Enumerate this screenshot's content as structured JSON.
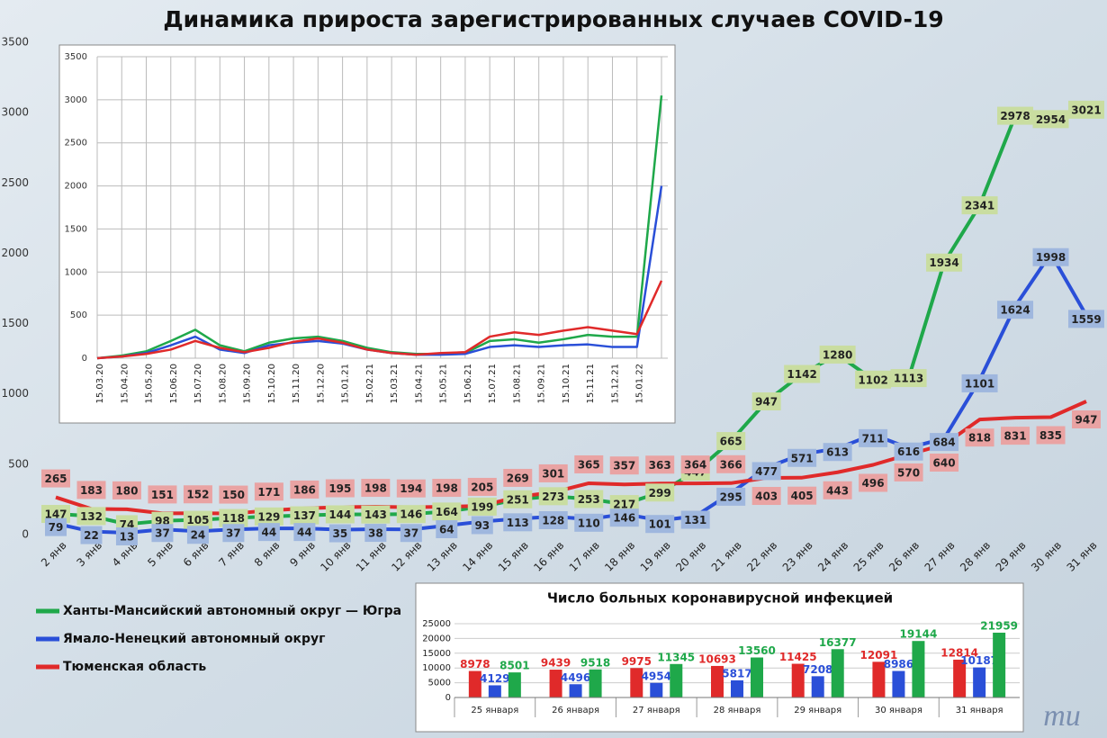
{
  "chart_data": [
    {
      "type": "line",
      "title": "Динамика прироста зарегистрированных случаев COVID-19",
      "categories": [
        "2 янв",
        "3 янв",
        "4 янв",
        "5 янв",
        "6 янв",
        "7 янв",
        "8 янв",
        "9 янв",
        "10 янв",
        "11 янв",
        "12 янв",
        "13 янв",
        "14 янв",
        "15 янв",
        "16 янв",
        "17 янв",
        "18 янв",
        "19 янв",
        "20 янв",
        "21 янв",
        "22 янв",
        "23 янв",
        "24 янв",
        "25 янв",
        "26 янв",
        "27 янв",
        "28 янв",
        "29 янв",
        "30 янв",
        "31 янв"
      ],
      "series": [
        {
          "name": "Ханты-Мансийский автономный округ — Югра",
          "color": "#1fa84a",
          "values": [
            147,
            132,
            74,
            98,
            105,
            118,
            129,
            137,
            144,
            143,
            146,
            164,
            199,
            251,
            273,
            253,
            217,
            299,
            447,
            665,
            947,
            1142,
            1280,
            1102,
            1113,
            1934,
            2341,
            2978,
            2954,
            3021
          ]
        },
        {
          "name": "Ямало-Ненецкий автономный округ",
          "color": "#2a4fd8",
          "values": [
            79,
            22,
            13,
            37,
            24,
            37,
            44,
            44,
            35,
            38,
            37,
            64,
            93,
            113,
            128,
            110,
            146,
            101,
            131,
            295,
            477,
            571,
            613,
            711,
            616,
            684,
            1101,
            1624,
            1998,
            1559
          ]
        },
        {
          "name": "Тюменская область",
          "color": "#e02a2a",
          "values": [
            265,
            183,
            180,
            151,
            152,
            150,
            171,
            186,
            195,
            198,
            194,
            198,
            205,
            269,
            301,
            365,
            357,
            363,
            364,
            366,
            403,
            405,
            443,
            496,
            570,
            640,
            818,
            831,
            835,
            947
          ]
        }
      ],
      "ylim": [
        0,
        3500
      ],
      "yticks": [
        0,
        500,
        1000,
        1500,
        2000,
        2500,
        3000,
        3500
      ],
      "grid": false
    },
    {
      "type": "line",
      "categories": [
        "15.03.20",
        "15.04.20",
        "15.05.20",
        "15.06.20",
        "15.07.20",
        "15.08.20",
        "15.09.20",
        "15.10.20",
        "15.11.20",
        "15.12.20",
        "15.01.21",
        "15.02.21",
        "15.03.21",
        "15.04.21",
        "15.05.21",
        "15.06.21",
        "15.07.21",
        "15.08.21",
        "15.09.21",
        "15.10.21",
        "15.11.21",
        "15.12.21",
        "15.01.22",
        null
      ],
      "series": [
        {
          "color": "#1fa84a",
          "values": [
            0,
            30,
            80,
            200,
            330,
            150,
            80,
            180,
            230,
            250,
            200,
            120,
            70,
            50,
            50,
            60,
            200,
            220,
            180,
            220,
            270,
            250,
            250,
            3050
          ]
        },
        {
          "color": "#2a4fd8",
          "values": [
            0,
            20,
            60,
            150,
            250,
            100,
            60,
            150,
            180,
            200,
            170,
            100,
            60,
            40,
            40,
            50,
            130,
            150,
            130,
            150,
            160,
            130,
            130,
            2000
          ]
        },
        {
          "color": "#e02a2a",
          "values": [
            0,
            20,
            50,
            100,
            200,
            120,
            70,
            120,
            190,
            230,
            180,
            100,
            60,
            40,
            60,
            70,
            250,
            300,
            270,
            320,
            360,
            320,
            280,
            900
          ]
        }
      ],
      "ylim": [
        0,
        3500
      ],
      "yticks": [
        0,
        500,
        1000,
        1500,
        2000,
        2500,
        3000,
        3500
      ],
      "grid": true
    },
    {
      "type": "bar",
      "title": "Число больных коронавирусной  инфекцией",
      "categories": [
        "25 января",
        "26 января",
        "27 января",
        "28 января",
        "29 января",
        "30 января",
        "31 января"
      ],
      "series": [
        {
          "color": "#e02a2a",
          "values": [
            8978,
            9439,
            9975,
            10693,
            11425,
            12091,
            12814
          ]
        },
        {
          "color": "#2a4fd8",
          "values": [
            4129,
            4496,
            4954,
            5817,
            7208,
            8986,
            10187
          ]
        },
        {
          "color": "#1fa84a",
          "values": [
            8501,
            9518,
            11345,
            13560,
            16377,
            19144,
            21959
          ]
        }
      ],
      "ylim": [
        0,
        25000
      ],
      "yticks": [
        0,
        5000,
        10000,
        15000,
        20000,
        25000
      ],
      "grid": true
    }
  ]
}
